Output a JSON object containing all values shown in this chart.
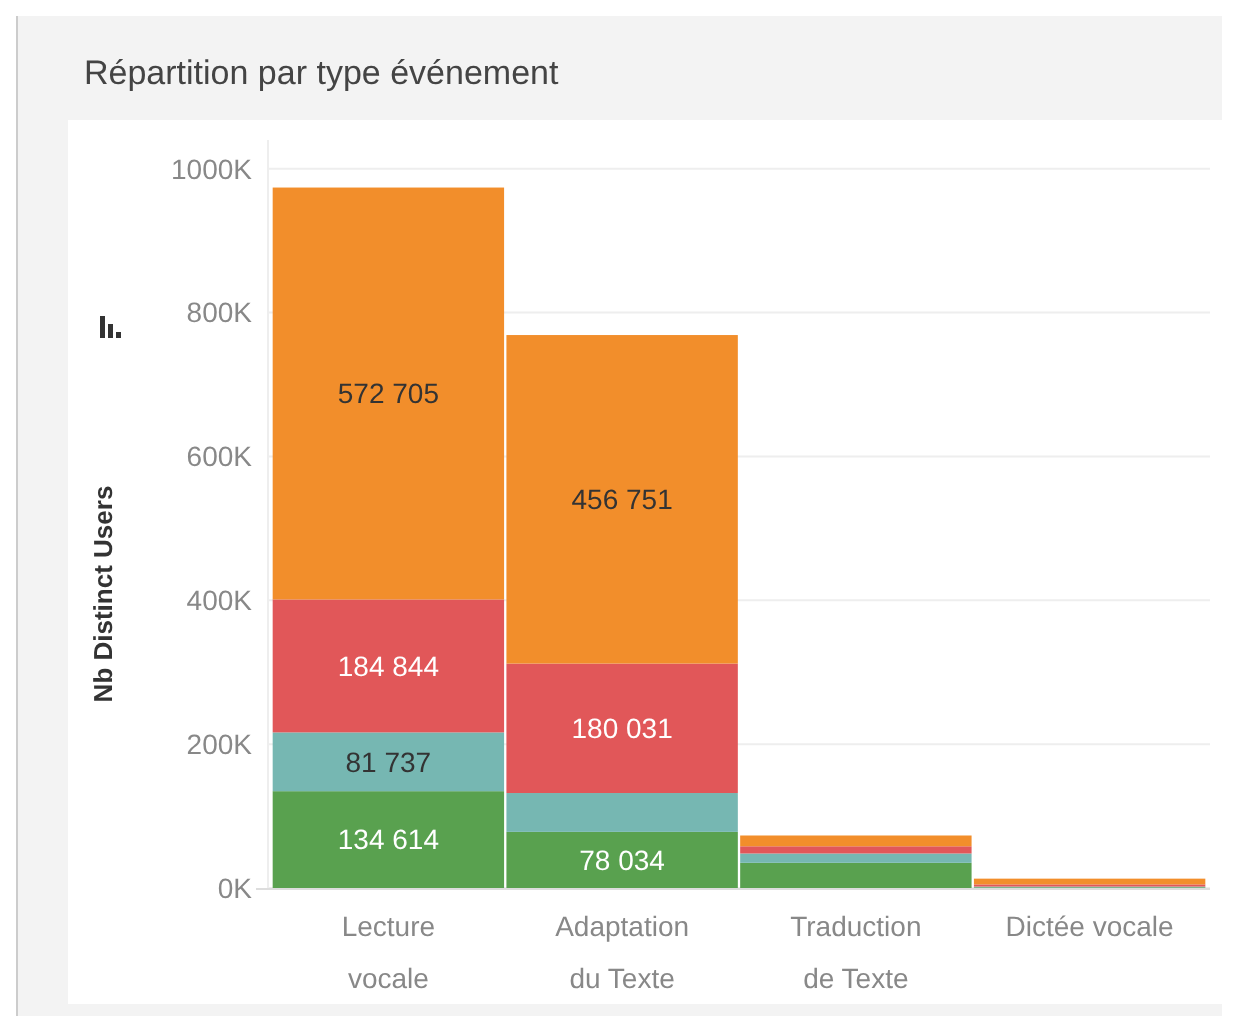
{
  "chart_data": {
    "type": "bar",
    "title": "Répartition par type événement",
    "ylabel": "Nb Distinct Users",
    "stacked": true,
    "grid": "y",
    "categories": [
      "Lecture vocale",
      "Adaptation du Texte",
      "Traduction de Texte",
      "Dictée vocale"
    ],
    "ylim": [
      0,
      1040000
    ],
    "yticks": [
      {
        "value": 0,
        "label": "0K"
      },
      {
        "value": 200000,
        "label": "200K"
      },
      {
        "value": 400000,
        "label": "400K"
      },
      {
        "value": 600000,
        "label": "600K"
      },
      {
        "value": 800000,
        "label": "800K"
      },
      {
        "value": 1000000,
        "label": "1000K"
      }
    ],
    "series": [
      {
        "color": "#59a14f",
        "values": [
          134614,
          78034,
          35000,
          1000
        ],
        "value_labels": [
          "134 614",
          "78 034",
          null,
          null
        ]
      },
      {
        "color": "#76b7b2",
        "values": [
          81737,
          54000,
          13000,
          1000
        ],
        "value_labels": [
          "81 737",
          null,
          null,
          null
        ]
      },
      {
        "color": "#e15759",
        "values": [
          184844,
          180031,
          10000,
          3000
        ],
        "value_labels": [
          "184 844",
          "180 031",
          null,
          null
        ]
      },
      {
        "color": "#f28e2b",
        "values": [
          572705,
          456751,
          15000,
          8000
        ],
        "value_labels": [
          "572 705",
          "456 751",
          null,
          null
        ]
      }
    ]
  }
}
